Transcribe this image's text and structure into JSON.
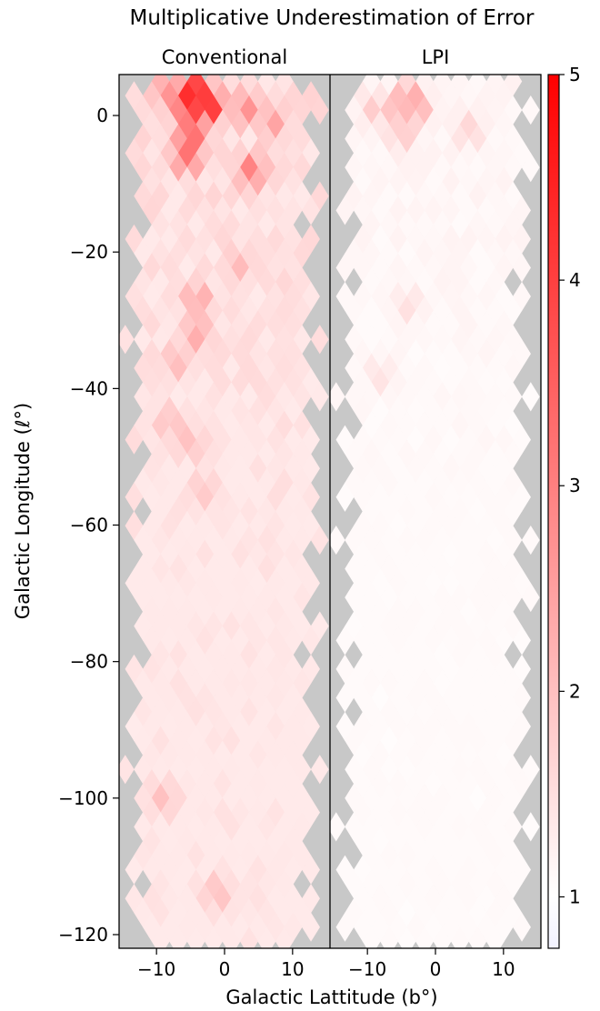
{
  "chart_data": {
    "type": "heatmap",
    "title": "Multiplicative Underestimation of Error",
    "xlabel": "Galactic Lattitude (b°)",
    "ylabel": "Galactic Longitude (ℓ°)",
    "xlim": [
      -15.5,
      15.5
    ],
    "ylim": [
      -122,
      6
    ],
    "x_ticks": [
      "−10",
      "0",
      "10"
    ],
    "x_tick_values": [
      -10,
      0,
      10
    ],
    "y_ticks": [
      "0",
      "−20",
      "−40",
      "−60",
      "−80",
      "−100",
      "−120"
    ],
    "y_tick_values": [
      0,
      -20,
      -40,
      -60,
      -80,
      -100,
      -120
    ],
    "colorbar": {
      "range": [
        0.75,
        5
      ],
      "ticks": [
        "5",
        "4",
        "3",
        "2",
        "1"
      ],
      "tick_values": [
        5,
        4,
        3,
        2,
        1
      ],
      "colormap": "bwr (upper half)",
      "low_color": "#f2f2ff",
      "high_color": "#ff0000"
    },
    "mask_color": "#c8c8c8",
    "grid": false,
    "panels": [
      {
        "title": "Conventional",
        "baseline": 1.3,
        "hotspots": [
          {
            "b": -4.5,
            "l": 3.5,
            "value": 5.0
          },
          {
            "b": -2.8,
            "l": 1.5,
            "value": 5.0
          },
          {
            "b": -5.0,
            "l": 0.5,
            "value": 4.2
          },
          {
            "b": -5.0,
            "l": -3.0,
            "value": 3.5
          },
          {
            "b": -5.5,
            "l": -6.0,
            "value": 3.3
          },
          {
            "b": -8.5,
            "l": 3.5,
            "value": 2.8
          },
          {
            "b": 3.0,
            "l": 1.0,
            "value": 2.8
          },
          {
            "b": 4.0,
            "l": -8.0,
            "value": 3.0
          },
          {
            "b": 7.0,
            "l": -1.0,
            "value": 2.5
          },
          {
            "b": -4.0,
            "l": -27.0,
            "value": 2.4
          },
          {
            "b": -4.0,
            "l": -32.0,
            "value": 2.4
          },
          {
            "b": -7.0,
            "l": -36.0,
            "value": 2.1
          },
          {
            "b": 2.0,
            "l": -22.0,
            "value": 2.1
          },
          {
            "b": -5.0,
            "l": -48.0,
            "value": 2.0
          },
          {
            "b": -8.0,
            "l": -45.0,
            "value": 2.0
          },
          {
            "b": -9.0,
            "l": -100.0,
            "value": 2.0
          },
          {
            "b": -1.0,
            "l": -114.0,
            "value": 2.0
          },
          {
            "b": -3.0,
            "l": -55.0,
            "value": 1.9
          }
        ]
      },
      {
        "title": "LPI",
        "baseline": 1.05,
        "hotspots": [
          {
            "b": -4.0,
            "l": 2.5,
            "value": 2.5
          },
          {
            "b": -3.0,
            "l": 1.0,
            "value": 2.4
          },
          {
            "b": -6.0,
            "l": 0.5,
            "value": 2.0
          },
          {
            "b": -5.0,
            "l": -2.5,
            "value": 1.9
          },
          {
            "b": 5.0,
            "l": -2.0,
            "value": 1.7
          },
          {
            "b": -9.0,
            "l": 1.0,
            "value": 1.8
          },
          {
            "b": -4.0,
            "l": -28.0,
            "value": 1.5
          },
          {
            "b": -8.0,
            "l": -38.0,
            "value": 1.45
          }
        ]
      }
    ]
  }
}
